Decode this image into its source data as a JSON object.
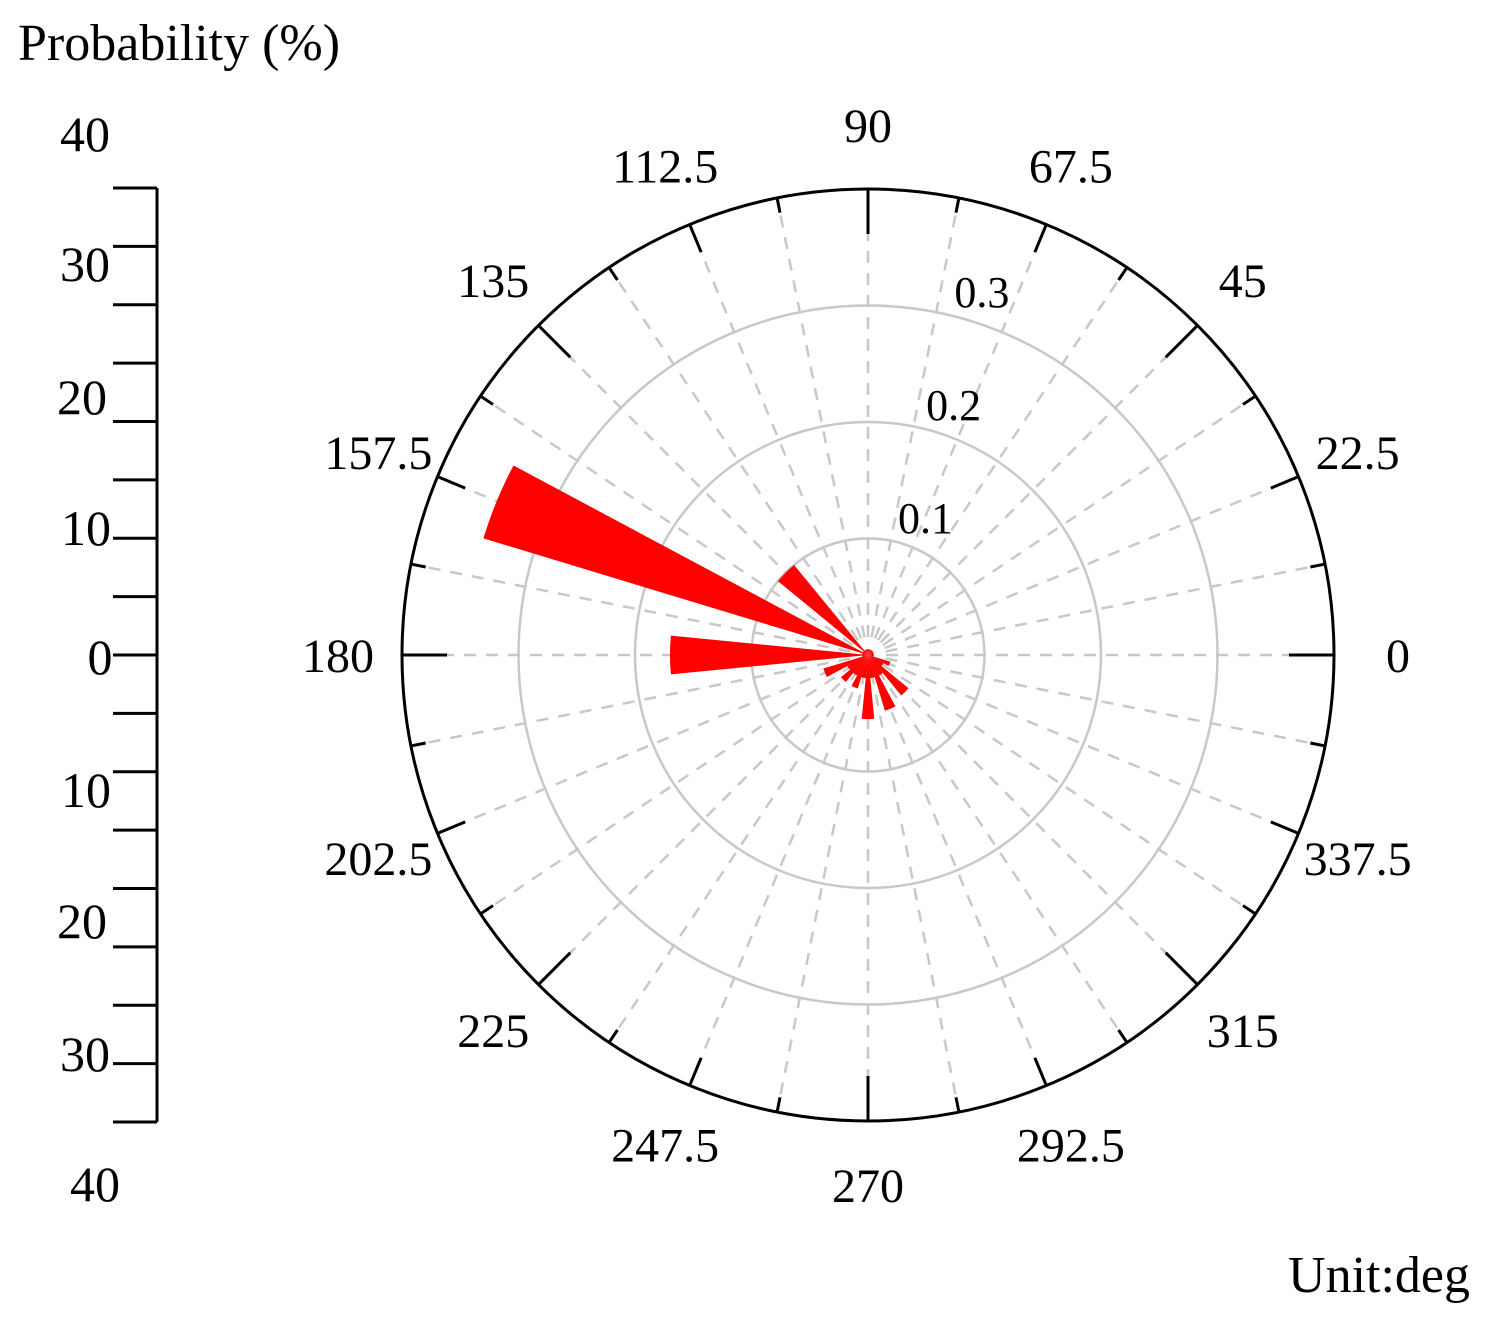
{
  "chart_data": {
    "type": "polar-bar",
    "title": "Probability (%)",
    "unit_label": "Unit:deg",
    "direction_labels": [
      "0",
      "22.5",
      "45",
      "67.5",
      "90",
      "112.5",
      "135",
      "157.5",
      "180",
      "202.5",
      "225",
      "247.5",
      "270",
      "292.5",
      "315",
      "337.5"
    ],
    "directions": [
      0,
      22.5,
      45,
      67.5,
      90,
      112.5,
      135,
      157.5,
      180,
      202.5,
      225,
      247.5,
      270,
      292.5,
      315,
      337.5
    ],
    "radial_ticks": [
      0.1,
      0.2,
      0.3
    ],
    "radial_tick_labels": [
      "0.1",
      "0.2",
      "0.3"
    ],
    "radial_max": 0.4,
    "scale_labels": [
      "40",
      "30",
      "20",
      "10",
      "0",
      "10",
      "20",
      "30",
      "40"
    ],
    "scale_values": [
      40,
      30,
      20,
      10,
      0,
      10,
      20,
      30,
      40
    ],
    "bin_width_deg": 11.25,
    "bins": [
      {
        "angle": 0,
        "value": 0.005
      },
      {
        "angle": 11.25,
        "value": 0.005
      },
      {
        "angle": 22.5,
        "value": 0.005
      },
      {
        "angle": 33.75,
        "value": 0.005
      },
      {
        "angle": 45,
        "value": 0.005
      },
      {
        "angle": 56.25,
        "value": 0.005
      },
      {
        "angle": 67.5,
        "value": 0.005
      },
      {
        "angle": 78.75,
        "value": 0.005
      },
      {
        "angle": 90,
        "value": 0.005
      },
      {
        "angle": 101.25,
        "value": 0.005
      },
      {
        "angle": 112.5,
        "value": 0.005
      },
      {
        "angle": 123.75,
        "value": 0.005
      },
      {
        "angle": 135,
        "value": 0.1
      },
      {
        "angle": 146.25,
        "value": 0.005
      },
      {
        "angle": 157.5,
        "value": 0.345
      },
      {
        "angle": 168.75,
        "value": 0.005
      },
      {
        "angle": 180,
        "value": 0.17
      },
      {
        "angle": 191.25,
        "value": 0.005
      },
      {
        "angle": 202.5,
        "value": 0.04
      },
      {
        "angle": 213.75,
        "value": 0.02
      },
      {
        "angle": 225,
        "value": 0.03
      },
      {
        "angle": 236.25,
        "value": 0.02
      },
      {
        "angle": 247.5,
        "value": 0.03
      },
      {
        "angle": 258.75,
        "value": 0.02
      },
      {
        "angle": 270,
        "value": 0.055
      },
      {
        "angle": 281.25,
        "value": 0.02
      },
      {
        "angle": 292.5,
        "value": 0.05
      },
      {
        "angle": 303.75,
        "value": 0.02
      },
      {
        "angle": 315,
        "value": 0.045
      },
      {
        "angle": 326.25,
        "value": 0.015
      },
      {
        "angle": 337.5,
        "value": 0.02
      },
      {
        "angle": 348.75,
        "value": 0.005
      }
    ],
    "colors": {
      "bar": "#ff0000",
      "grid": "#c8c8c8",
      "axis": "#000000"
    }
  }
}
